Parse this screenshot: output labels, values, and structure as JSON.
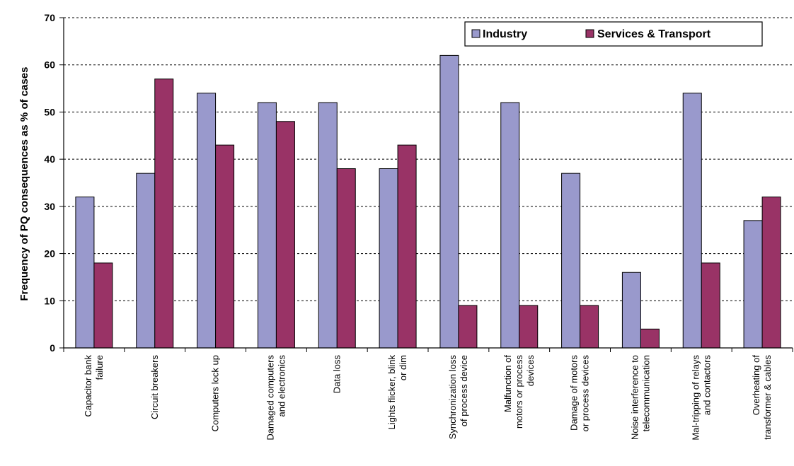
{
  "chart_data": {
    "type": "bar",
    "categories": [
      [
        "Capacitor bank",
        "failure"
      ],
      [
        "Circuit breakers"
      ],
      [
        "Computers lock up"
      ],
      [
        "Damaged computers",
        "and electronics"
      ],
      [
        "Data loss"
      ],
      [
        "Lights flicker, blink",
        "or dim"
      ],
      [
        "Synchronization loss",
        "of process device"
      ],
      [
        "Malfunction of",
        "motors or process",
        "devices"
      ],
      [
        "Damage of motors",
        "or process devices"
      ],
      [
        "Noise interference to",
        "telecommunication"
      ],
      [
        "Mal-tripping of relays",
        "and contactors"
      ],
      [
        "Overheating of",
        "transformer & cables"
      ]
    ],
    "series": [
      {
        "name": "Industry",
        "color": "#9999cc",
        "values": [
          32,
          37,
          54,
          52,
          52,
          38,
          62,
          52,
          37,
          16,
          54,
          27
        ]
      },
      {
        "name": "Services & Transport",
        "color": "#993366",
        "values": [
          18,
          57,
          43,
          48,
          38,
          43,
          9,
          9,
          9,
          4,
          18,
          32
        ]
      }
    ],
    "ylabel": "Frequency of PQ consequences as % of cases",
    "xlabel": "",
    "ylim": [
      0,
      70
    ],
    "yticks": [
      0,
      10,
      20,
      30,
      40,
      50,
      60,
      70
    ],
    "grid": true,
    "legend": "top-right"
  }
}
